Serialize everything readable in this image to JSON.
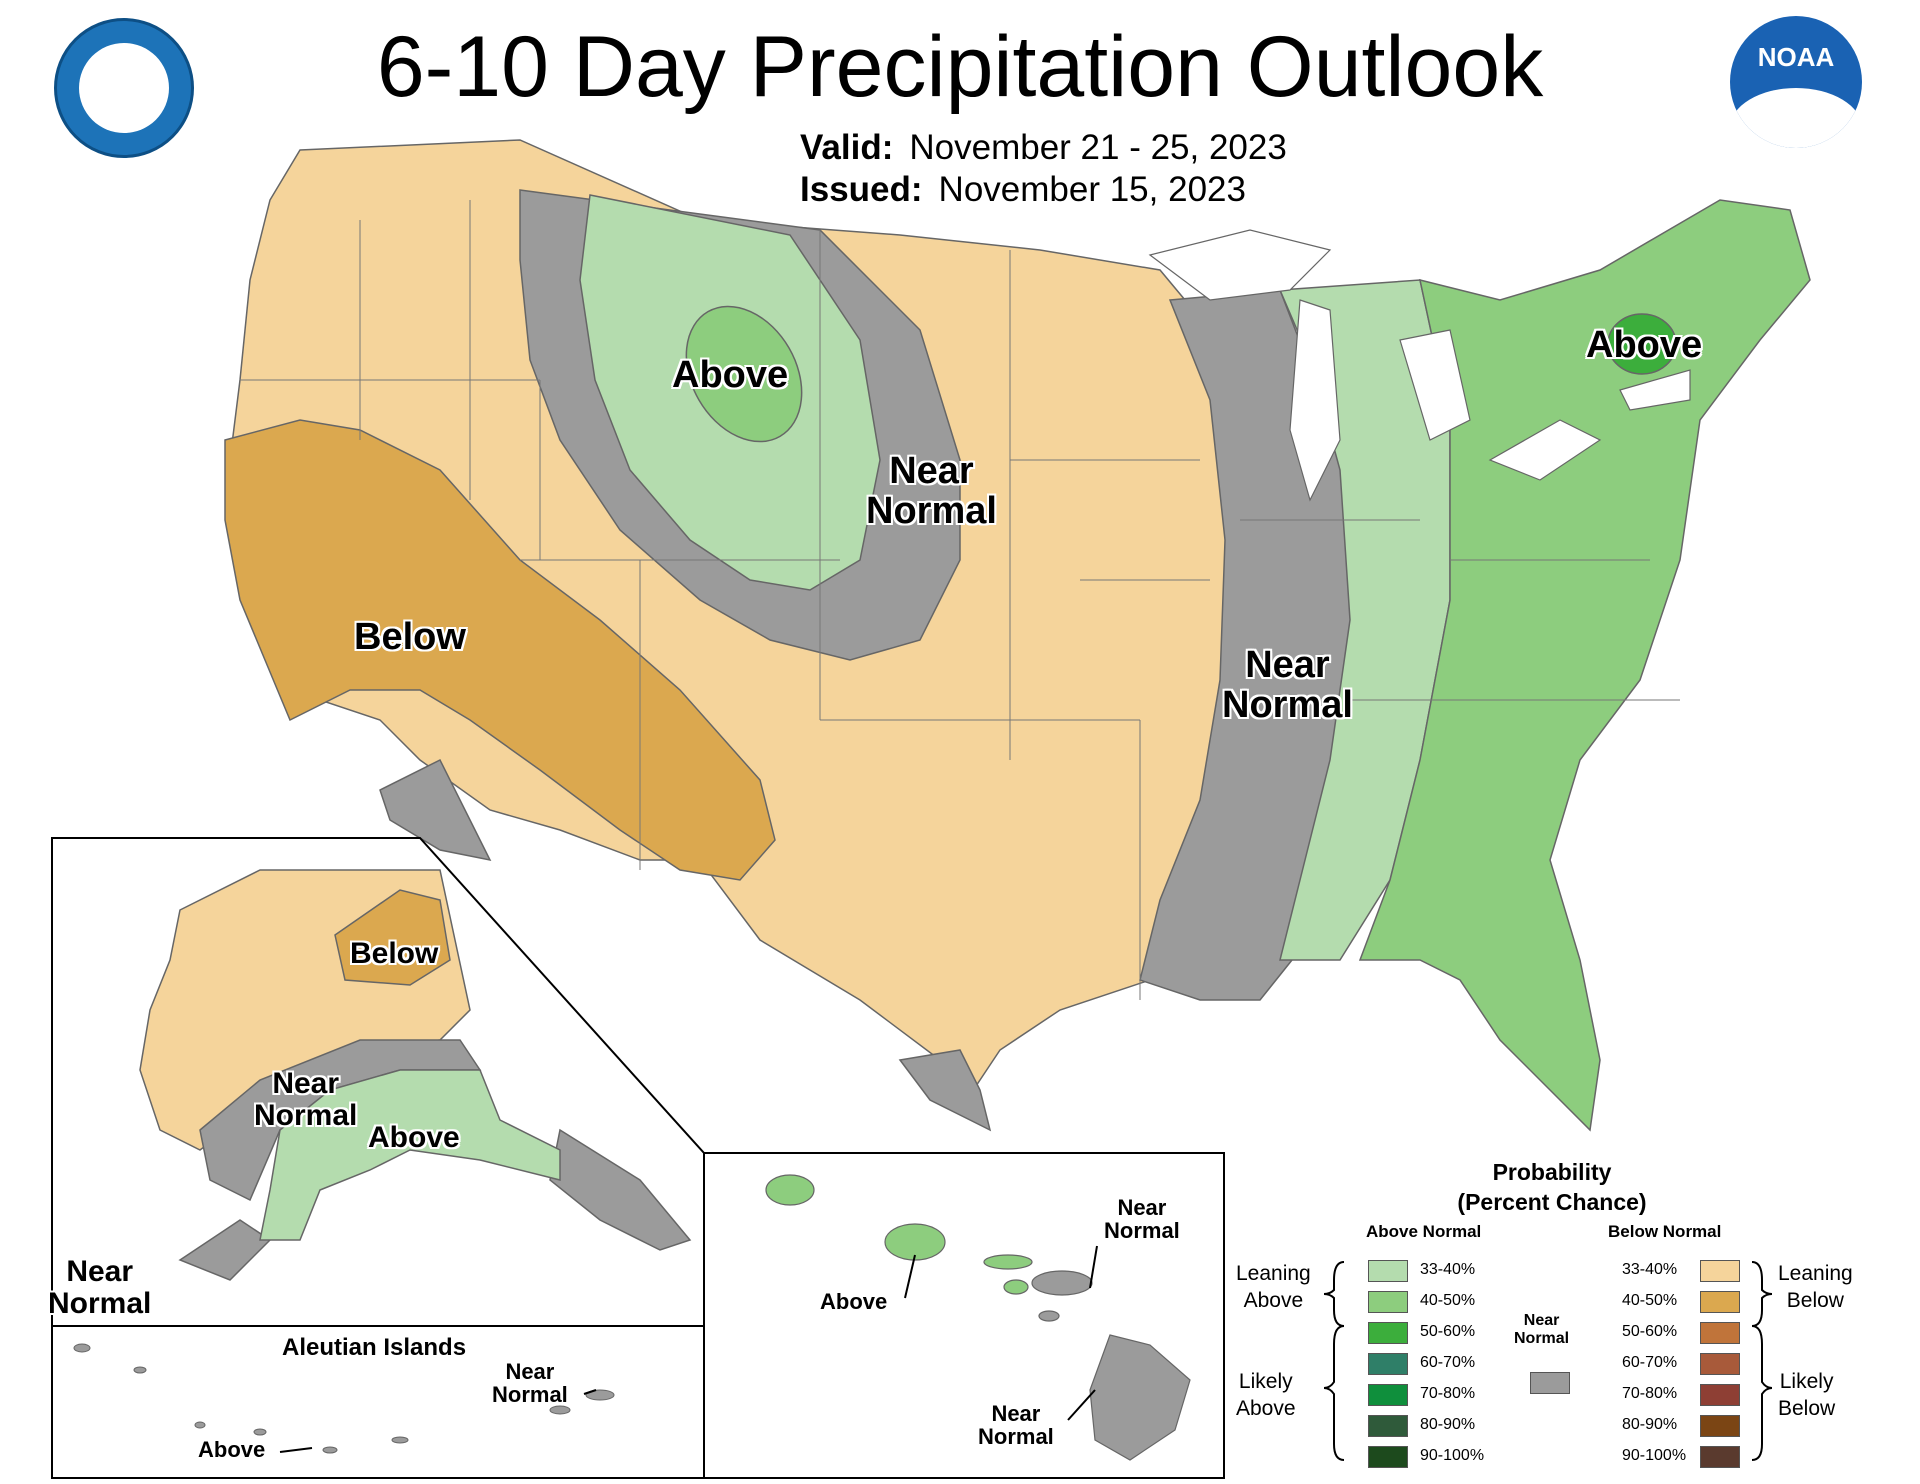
{
  "title": "6-10 Day Precipitation Outlook",
  "valid": {
    "label": "Valid:",
    "value": "November 21 - 25, 2023"
  },
  "issued": {
    "label": "Issued:",
    "value": "November 15, 2023"
  },
  "colors": {
    "leaning_above": "#b4dcae",
    "above_40_50": "#8dcd7e",
    "above_50_60": "#3cae3c",
    "leaning_below": "#f5d49b",
    "below_40_50": "#dba84f",
    "near_normal": "#9b9b9b",
    "water": "#ffffff"
  },
  "map_labels": {
    "conus_above_north": "Above",
    "conus_near_normal_north": "Near\nNormal",
    "conus_below": "Below",
    "conus_near_normal_east": "Near\nNormal",
    "conus_above_east": "Above",
    "ak_below": "Below",
    "ak_near_normal": "Near\nNormal",
    "ak_above": "Above",
    "ak_near_normal_sw": "Near\nNormal",
    "aleutian_title": "Aleutian Islands",
    "aleutian_near_normal": "Near\nNormal",
    "aleutian_above": "Above",
    "hi_near_normal_top": "Near\nNormal",
    "hi_above": "Above",
    "hi_near_normal_bottom": "Near\nNormal"
  },
  "legend": {
    "title": "Probability\n(Percent Chance)",
    "above_head": "Above Normal",
    "below_head": "Below Normal",
    "near_head": "Near\nNormal",
    "leaning_above": "Leaning\nAbove",
    "likely_above": "Likely\nAbove",
    "leaning_below": "Leaning\nBelow",
    "likely_below": "Likely\nBelow",
    "above_bins": [
      {
        "label": "33-40%",
        "color": "#b4dcae"
      },
      {
        "label": "40-50%",
        "color": "#8dcd7e"
      },
      {
        "label": "50-60%",
        "color": "#3cae3c"
      },
      {
        "label": "60-70%",
        "color": "#2f7f68"
      },
      {
        "label": "70-80%",
        "color": "#0f8f3c"
      },
      {
        "label": "80-90%",
        "color": "#2f5a3a"
      },
      {
        "label": "90-100%",
        "color": "#1d4a1d"
      }
    ],
    "below_bins": [
      {
        "label": "33-40%",
        "color": "#f5d49b"
      },
      {
        "label": "40-50%",
        "color": "#dba84f"
      },
      {
        "label": "50-60%",
        "color": "#c0743a"
      },
      {
        "label": "60-70%",
        "color": "#a85a3a"
      },
      {
        "label": "70-80%",
        "color": "#8e3f34"
      },
      {
        "label": "80-90%",
        "color": "#7b4514"
      },
      {
        "label": "90-100%",
        "color": "#5a3a2e"
      }
    ],
    "near_color": "#9b9b9b"
  }
}
